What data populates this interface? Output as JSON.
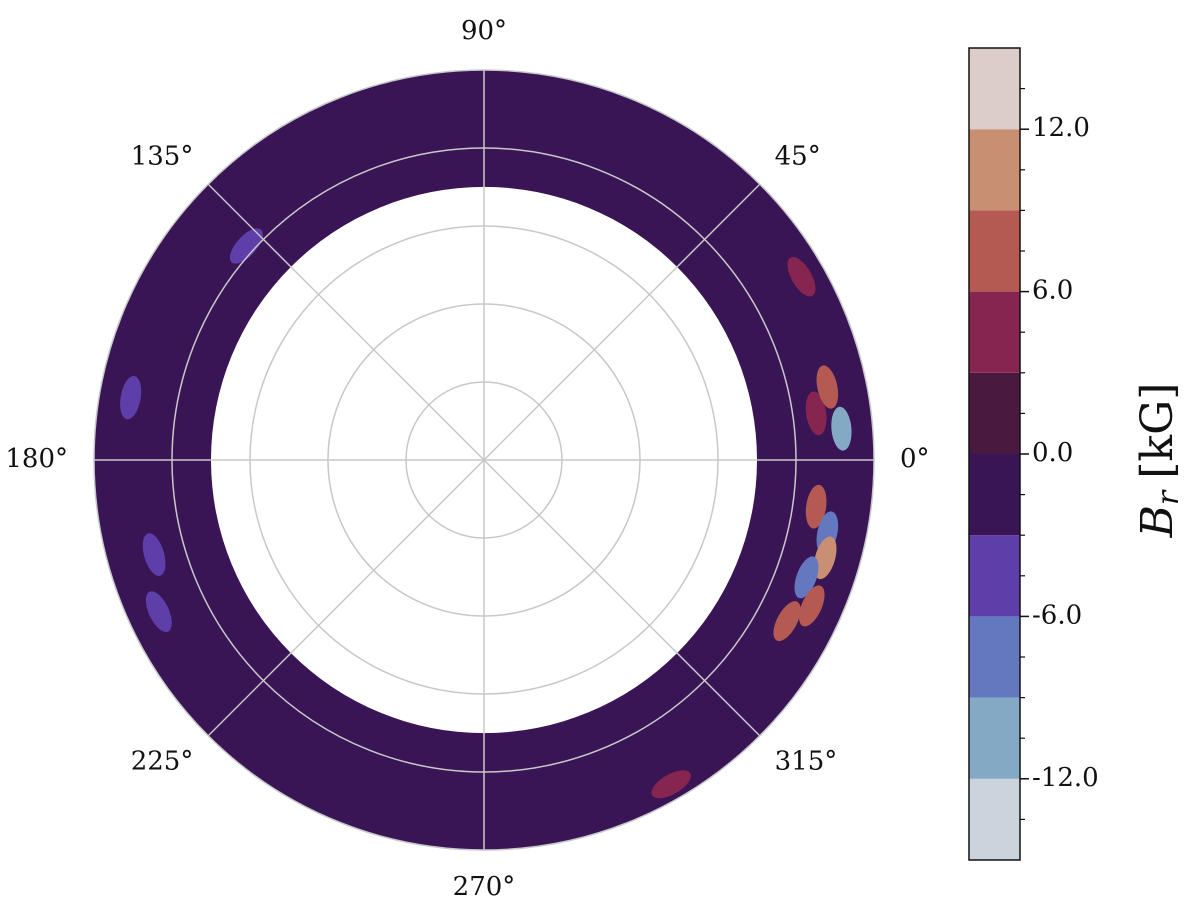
{
  "chart_data": {
    "type": "polar-contour",
    "rlim": [
      0,
      5
    ],
    "rticks": [
      1,
      2,
      3,
      4,
      5
    ],
    "inner_radius": 3.5,
    "background_value": -1,
    "thetaticks": [
      {
        "value": 0,
        "label": "0°"
      },
      {
        "value": 45,
        "label": "45°"
      },
      {
        "value": 90,
        "label": "90°"
      },
      {
        "value": 135,
        "label": "135°"
      },
      {
        "value": 180,
        "label": "180°"
      },
      {
        "value": 225,
        "label": "225°"
      },
      {
        "value": 270,
        "label": "270°"
      },
      {
        "value": 315,
        "label": "315°"
      }
    ],
    "spots": [
      {
        "theta": 5,
        "r": 4.6,
        "value": -10
      },
      {
        "theta": 8,
        "r": 4.3,
        "value": 5
      },
      {
        "theta": 12,
        "r": 4.5,
        "value": 7
      },
      {
        "theta": -8,
        "r": 4.3,
        "value": 9
      },
      {
        "theta": -12,
        "r": 4.5,
        "value": -7
      },
      {
        "theta": -16,
        "r": 4.55,
        "value": 11
      },
      {
        "theta": -20,
        "r": 4.4,
        "value": -8
      },
      {
        "theta": -24,
        "r": 4.6,
        "value": 8
      },
      {
        "theta": -28,
        "r": 4.4,
        "value": 7
      },
      {
        "theta": 30,
        "r": 4.7,
        "value": 5
      },
      {
        "theta": 138,
        "r": 4.1,
        "value": -5
      },
      {
        "theta": 170,
        "r": 4.6,
        "value": -5
      },
      {
        "theta": 196,
        "r": 4.4,
        "value": -5
      },
      {
        "theta": 205,
        "r": 4.6,
        "value": -5
      },
      {
        "theta": 300,
        "r": 4.8,
        "value": 5
      }
    ],
    "colorbar": {
      "label": {
        "symbol": "B",
        "subscript": "r",
        "unit": "[kG]"
      },
      "levels": [
        -15,
        -12,
        -9,
        -6,
        -3,
        0,
        3,
        6,
        9,
        12,
        15
      ],
      "colors": [
        "#ccd3dc",
        "#84a9c5",
        "#6478c0",
        "#5e3ea8",
        "#3a1556",
        "#4a1940",
        "#862550",
        "#b45a52",
        "#c98f72",
        "#ddcdca"
      ],
      "ylim": [
        -15,
        15
      ],
      "yticks": [
        {
          "value": -12,
          "label": "-12.0"
        },
        {
          "value": -6,
          "label": "-6.0"
        },
        {
          "value": 0,
          "label": "0.0"
        },
        {
          "value": 6,
          "label": "6.0"
        },
        {
          "value": 12,
          "label": "12.0"
        }
      ],
      "minor_yticks": [
        -13.5,
        -10.5,
        -9,
        -7.5,
        -4.5,
        -3,
        -1.5,
        1.5,
        3,
        4.5,
        7.5,
        9,
        10.5,
        13.5
      ]
    }
  }
}
